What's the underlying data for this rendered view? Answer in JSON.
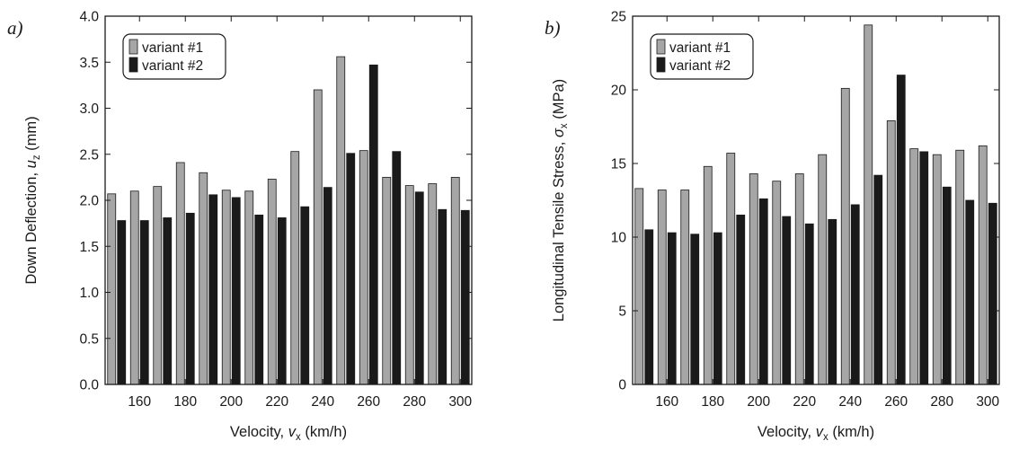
{
  "chart_data": [
    {
      "panel_label": "a)",
      "type": "bar",
      "x": [
        150,
        160,
        170,
        180,
        190,
        200,
        210,
        220,
        230,
        240,
        250,
        260,
        270,
        280,
        290,
        300
      ],
      "xticks": [
        160,
        180,
        200,
        220,
        240,
        260,
        280,
        300
      ],
      "xlim": [
        145,
        305
      ],
      "ylim": [
        0,
        4
      ],
      "yticks": [
        "0.0",
        "0.5",
        "1.0",
        "1.5",
        "2.0",
        "2.5",
        "3.0",
        "3.5",
        "4.0"
      ],
      "xlabel": {
        "main": "Velocity, ",
        "var": "v",
        "sub": "x",
        "unit": " (km/h)"
      },
      "ylabel": {
        "main": "Down Deflection, ",
        "var": "u",
        "sub": "z",
        "unit": " (mm)"
      },
      "series": [
        {
          "name": "variant #1",
          "color": "#a6a6a6",
          "values": [
            2.07,
            2.1,
            2.15,
            2.41,
            2.3,
            2.11,
            2.1,
            2.23,
            2.53,
            3.2,
            3.56,
            2.54,
            2.25,
            2.16,
            2.18,
            2.25
          ]
        },
        {
          "name": "variant #2",
          "color": "#1a1a1a",
          "values": [
            1.78,
            1.78,
            1.81,
            1.86,
            2.06,
            2.03,
            1.84,
            1.81,
            1.93,
            2.14,
            2.51,
            3.47,
            2.53,
            2.09,
            1.9,
            1.89
          ]
        }
      ],
      "legend": "top-left"
    },
    {
      "panel_label": "b)",
      "type": "bar",
      "x": [
        150,
        160,
        170,
        180,
        190,
        200,
        210,
        220,
        230,
        240,
        250,
        260,
        270,
        280,
        290,
        300
      ],
      "xticks": [
        160,
        180,
        200,
        220,
        240,
        260,
        280,
        300
      ],
      "xlim": [
        145,
        305
      ],
      "ylim": [
        0,
        25
      ],
      "yticks": [
        "0",
        "5",
        "10",
        "15",
        "20",
        "25"
      ],
      "xlabel": {
        "main": "Velocity, ",
        "var": "v",
        "sub": "x",
        "unit": " (km/h)"
      },
      "ylabel": {
        "main": "Longitudinal Tensile Stress, ",
        "var": "σ",
        "sub": "x",
        "unit": " (MPa)"
      },
      "series": [
        {
          "name": "variant #1",
          "color": "#a6a6a6",
          "values": [
            13.3,
            13.2,
            13.2,
            14.8,
            15.7,
            14.3,
            13.8,
            14.3,
            15.6,
            20.1,
            24.4,
            17.9,
            16.0,
            15.6,
            15.9,
            16.2
          ]
        },
        {
          "name": "variant #2",
          "color": "#1a1a1a",
          "values": [
            10.5,
            10.3,
            10.2,
            10.3,
            11.5,
            12.6,
            11.4,
            10.9,
            11.2,
            12.2,
            14.2,
            21.0,
            15.8,
            13.4,
            12.5,
            12.3
          ]
        }
      ],
      "legend": "top-left"
    }
  ]
}
